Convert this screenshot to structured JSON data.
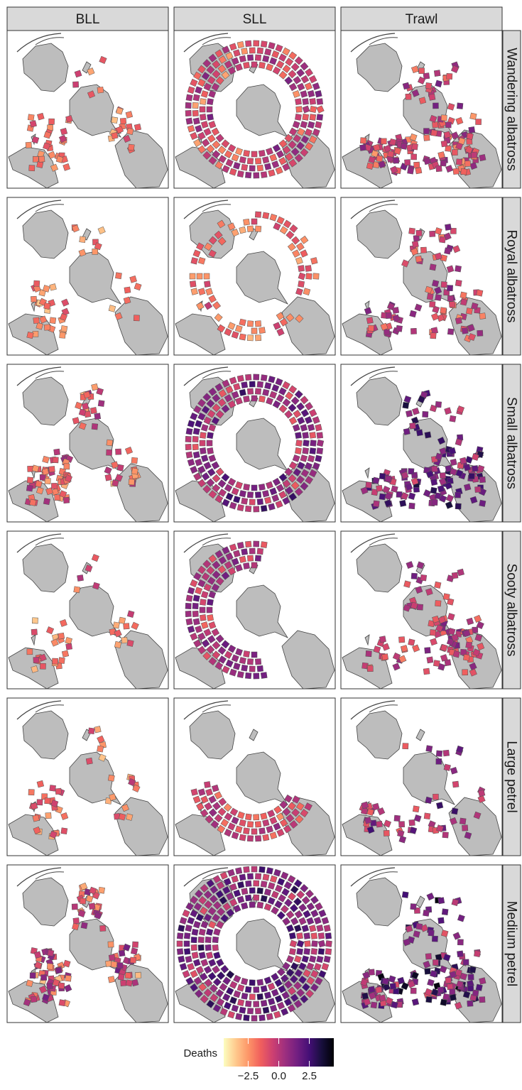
{
  "chart_data": {
    "type": "heatmap",
    "description_free": true,
    "facet_columns": [
      "BLL",
      "SLL",
      "Trawl"
    ],
    "facet_rows": [
      "Wandering albatross",
      "Royal albatross",
      "Small albatross",
      "Sooty albatross",
      "Large petrel",
      "Medium petrel"
    ],
    "colorbar": {
      "title": "Deaths",
      "ticks": [
        -2.5,
        0.0,
        2.5
      ],
      "tick_labels": [
        "−2.5",
        "0.0",
        "2.5"
      ],
      "range": [
        -4.5,
        4.5
      ],
      "palette": [
        "#fcfdbf",
        "#fec98d",
        "#fd9668",
        "#f1605d",
        "#cd4071",
        "#9e2f7f",
        "#721f81",
        "#440f76",
        "#180f3d",
        "#000004"
      ]
    },
    "cells": [
      {
        "row": 0,
        "col": 0,
        "layout": "scatter-west",
        "levels": [
          -2.6,
          -1.9,
          -1.2,
          -0.6,
          -2.2,
          -1.5,
          -0.9,
          -2.8
        ],
        "n": 54
      },
      {
        "row": 0,
        "col": 1,
        "layout": "ring-full",
        "levels": [
          -1.0,
          -0.2,
          0.4,
          -0.6,
          0.9,
          -1.5,
          0.1,
          -2.2
        ],
        "n": 300
      },
      {
        "row": 0,
        "col": 2,
        "layout": "scatter-south",
        "levels": [
          -1.6,
          -0.7,
          0.2,
          -1.1,
          0.6,
          -2.0,
          -0.3,
          0.9
        ],
        "n": 150
      },
      {
        "row": 1,
        "col": 0,
        "layout": "scatter-west",
        "levels": [
          -2.8,
          -2.2,
          -1.6,
          -2.5,
          -1.9,
          -1.3,
          -2.9,
          -2.0
        ],
        "n": 44
      },
      {
        "row": 1,
        "col": 1,
        "layout": "ring-sparse",
        "levels": [
          -2.2,
          -1.6,
          -1.0,
          -2.6,
          -0.6,
          -1.9,
          -1.3,
          -2.4
        ],
        "n": 96
      },
      {
        "row": 1,
        "col": 2,
        "layout": "scatter-south",
        "levels": [
          -1.4,
          -0.5,
          0.3,
          -0.9,
          0.7,
          -1.8,
          -0.1,
          1.0
        ],
        "n": 96
      },
      {
        "row": 2,
        "col": 0,
        "layout": "scatter-west",
        "levels": [
          -2.4,
          -1.4,
          -0.4,
          -1.9,
          0.2,
          -2.8,
          -0.9,
          -1.6
        ],
        "n": 96
      },
      {
        "row": 2,
        "col": 1,
        "layout": "ring-full",
        "levels": [
          -0.4,
          0.5,
          1.2,
          0.0,
          1.8,
          -0.8,
          0.8,
          2.3
        ],
        "n": 300
      },
      {
        "row": 2,
        "col": 2,
        "layout": "scatter-south",
        "levels": [
          0.2,
          1.1,
          1.9,
          0.6,
          2.6,
          -0.4,
          1.4,
          3.0
        ],
        "n": 140
      },
      {
        "row": 3,
        "col": 0,
        "layout": "scatter-west-small",
        "levels": [
          -2.6,
          -1.6,
          -0.6,
          -2.2,
          -1.1,
          0.1,
          -2.9,
          -1.4
        ],
        "n": 54
      },
      {
        "row": 3,
        "col": 1,
        "layout": "ring-half",
        "levels": [
          -0.6,
          0.2,
          0.9,
          -0.2,
          1.3,
          -1.1,
          0.5,
          1.6
        ],
        "n": 150
      },
      {
        "row": 3,
        "col": 2,
        "layout": "scatter-south",
        "levels": [
          -1.2,
          -0.4,
          0.3,
          -0.8,
          0.7,
          -1.6,
          0.0,
          1.0
        ],
        "n": 100
      },
      {
        "row": 4,
        "col": 0,
        "layout": "scatter-west-small",
        "levels": [
          -2.4,
          -1.6,
          -0.9,
          -2.0,
          -1.2,
          -0.5,
          -2.8,
          -1.4
        ],
        "n": 60
      },
      {
        "row": 4,
        "col": 1,
        "layout": "ring-south",
        "levels": [
          -1.4,
          -0.7,
          -0.2,
          -1.0,
          0.2,
          -1.8,
          -0.4,
          0.4
        ],
        "n": 110
      },
      {
        "row": 4,
        "col": 2,
        "layout": "scatter-south-small",
        "levels": [
          -0.6,
          0.3,
          1.0,
          -0.2,
          1.6,
          -1.0,
          0.6,
          2.2
        ],
        "n": 80
      },
      {
        "row": 5,
        "col": 0,
        "layout": "scatter-west",
        "levels": [
          -2.4,
          -1.2,
          -0.2,
          -1.8,
          0.5,
          -2.8,
          -0.6,
          1.0
        ],
        "n": 110
      },
      {
        "row": 5,
        "col": 1,
        "layout": "ring-wide",
        "levels": [
          0.0,
          0.8,
          1.5,
          0.4,
          2.2,
          -0.6,
          1.1,
          2.7
        ],
        "n": 380
      },
      {
        "row": 5,
        "col": 2,
        "layout": "scatter-south",
        "levels": [
          0.0,
          1.0,
          2.0,
          0.5,
          2.8,
          -0.5,
          1.5,
          3.8
        ],
        "n": 150
      }
    ]
  }
}
